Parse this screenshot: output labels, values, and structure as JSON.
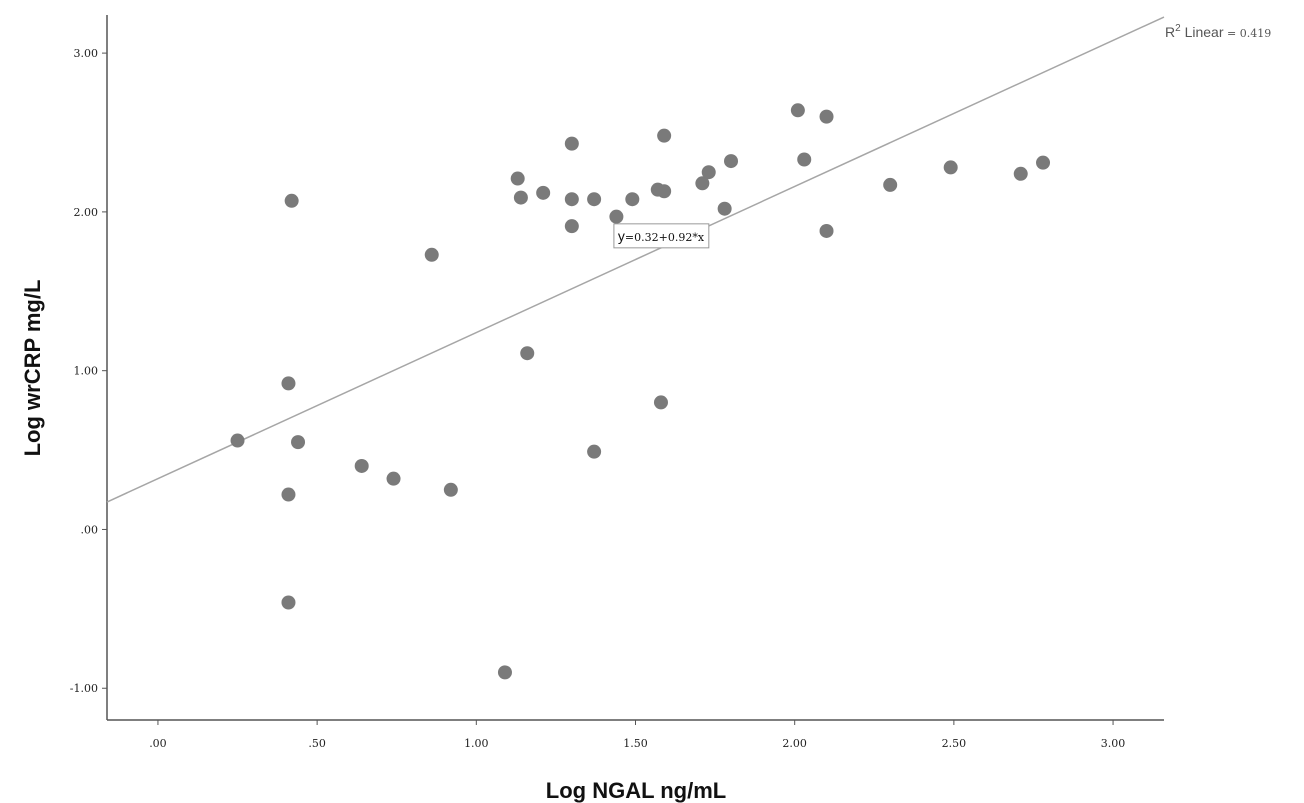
{
  "chart_data": {
    "type": "scatter",
    "xlabel": "Log NGAL ng/mL",
    "ylabel": "Log wrCRP mg/L",
    "xlim": [
      -0.16,
      3.16
    ],
    "ylim": [
      -1.2,
      3.24
    ],
    "x_ticks": [
      0,
      0.5,
      1.0,
      1.5,
      2.0,
      2.5,
      3.0
    ],
    "x_tick_labels": [
      ".00",
      ".50",
      "1.00",
      "1.50",
      "2.00",
      "2.50",
      "3.00"
    ],
    "y_ticks": [
      -1.0,
      0,
      1.0,
      2.0,
      3.0
    ],
    "y_tick_labels": [
      "-1.00",
      ".00",
      "1.00",
      "2.00",
      "3.00"
    ],
    "grid": false,
    "marker_color": "#7a7a7a",
    "line_color": "#a6a6a6",
    "points": [
      {
        "x": 0.25,
        "y": 0.56
      },
      {
        "x": 0.41,
        "y": 0.92
      },
      {
        "x": 0.42,
        "y": 2.07
      },
      {
        "x": 0.44,
        "y": 0.55
      },
      {
        "x": 0.41,
        "y": 0.22
      },
      {
        "x": 0.41,
        "y": -0.46
      },
      {
        "x": 0.64,
        "y": 0.4
      },
      {
        "x": 0.74,
        "y": 0.32
      },
      {
        "x": 0.86,
        "y": 1.73
      },
      {
        "x": 0.92,
        "y": 0.25
      },
      {
        "x": 1.09,
        "y": -0.9
      },
      {
        "x": 1.13,
        "y": 2.21
      },
      {
        "x": 1.14,
        "y": 2.09
      },
      {
        "x": 1.16,
        "y": 1.11
      },
      {
        "x": 1.21,
        "y": 2.12
      },
      {
        "x": 1.3,
        "y": 2.43
      },
      {
        "x": 1.3,
        "y": 2.08
      },
      {
        "x": 1.3,
        "y": 1.91
      },
      {
        "x": 1.37,
        "y": 2.08
      },
      {
        "x": 1.37,
        "y": 0.49
      },
      {
        "x": 1.44,
        "y": 1.97
      },
      {
        "x": 1.49,
        "y": 2.08
      },
      {
        "x": 1.57,
        "y": 2.14
      },
      {
        "x": 1.58,
        "y": 0.8
      },
      {
        "x": 1.59,
        "y": 2.48
      },
      {
        "x": 1.59,
        "y": 2.13
      },
      {
        "x": 1.71,
        "y": 2.18
      },
      {
        "x": 1.73,
        "y": 2.25
      },
      {
        "x": 1.78,
        "y": 2.02
      },
      {
        "x": 1.8,
        "y": 2.32
      },
      {
        "x": 2.01,
        "y": 2.64
      },
      {
        "x": 2.03,
        "y": 2.33
      },
      {
        "x": 2.1,
        "y": 2.6
      },
      {
        "x": 2.1,
        "y": 1.88
      },
      {
        "x": 2.3,
        "y": 2.17
      },
      {
        "x": 2.49,
        "y": 2.28
      },
      {
        "x": 2.71,
        "y": 2.24
      },
      {
        "x": 2.78,
        "y": 2.31
      }
    ],
    "fit": {
      "intercept": 0.32,
      "slope": 0.92,
      "equation_y": "y",
      "equation_rest": "=0.32+0.92*x",
      "equation_anchor_x": 1.58,
      "r2_label": "R",
      "r2_sup": "2",
      "r2_linear": " Linear",
      "r2_value": " = 0.419"
    }
  }
}
